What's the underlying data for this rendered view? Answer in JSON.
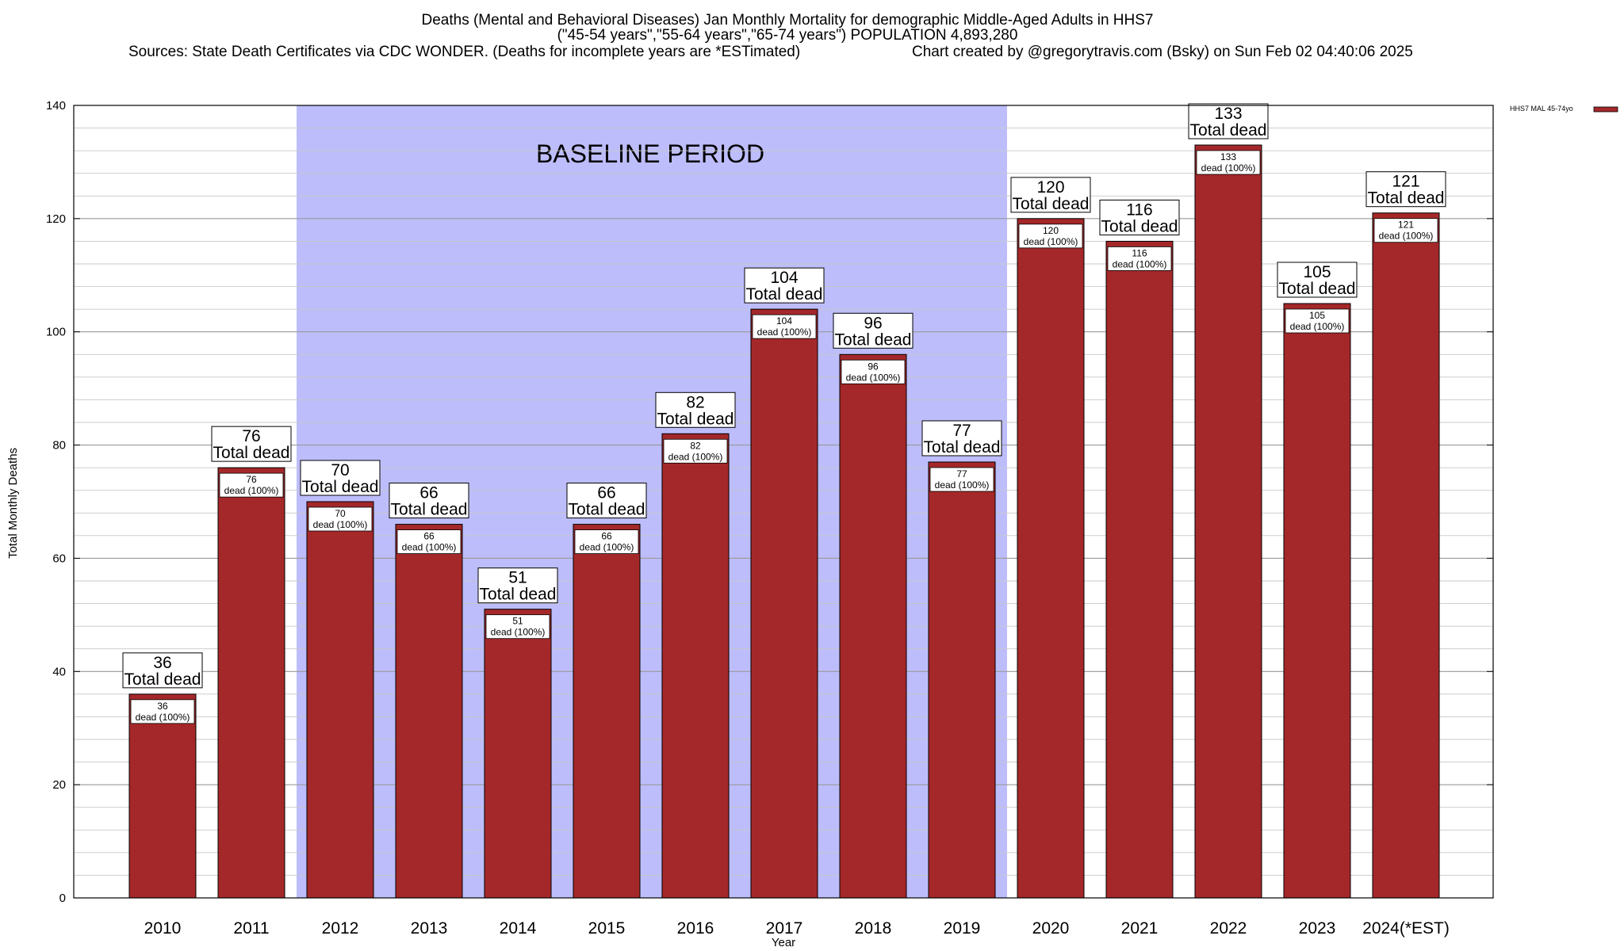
{
  "chart_data": {
    "type": "bar",
    "title_lines": [
      "Deaths (Mental and Behavioral Diseases) Jan Monthly Mortality for demographic Middle-Aged Adults in HHS7",
      "(\"45-54 years\",\"55-64 years\",\"65-74 years\") POPULATION 4,893,280"
    ],
    "sources": "Sources: State Death Certificates via CDC WONDER. (Deaths for incomplete years are *ESTimated)",
    "credit": "Chart created by @gregorytravis.com (Bsky) on Sun Feb 02 04:40:06 2025",
    "xlabel": "Year",
    "ylabel": "Total Monthly Deaths",
    "ylim": [
      0,
      140
    ],
    "y_ticks": [
      0,
      20,
      40,
      60,
      80,
      100,
      120,
      140
    ],
    "grid": true,
    "legend_position": "top-right",
    "categories": [
      "2010",
      "2011",
      "2012",
      "2013",
      "2014",
      "2015",
      "2016",
      "2017",
      "2018",
      "2019",
      "2020",
      "2021",
      "2022",
      "2023",
      "2024(*EST)"
    ],
    "series": [
      {
        "name": "HHS7 MAL 45-74yo",
        "color": "#a4282a",
        "values": [
          36,
          76,
          70,
          66,
          51,
          66,
          82,
          104,
          96,
          77,
          120,
          116,
          133,
          105,
          121
        ]
      }
    ],
    "total_label": "Total dead",
    "inner_label": "dead (100%)",
    "baseline": {
      "label": "BASELINE PERIOD",
      "start": "2012",
      "end": "2019",
      "color": "#bdbdfb"
    }
  }
}
